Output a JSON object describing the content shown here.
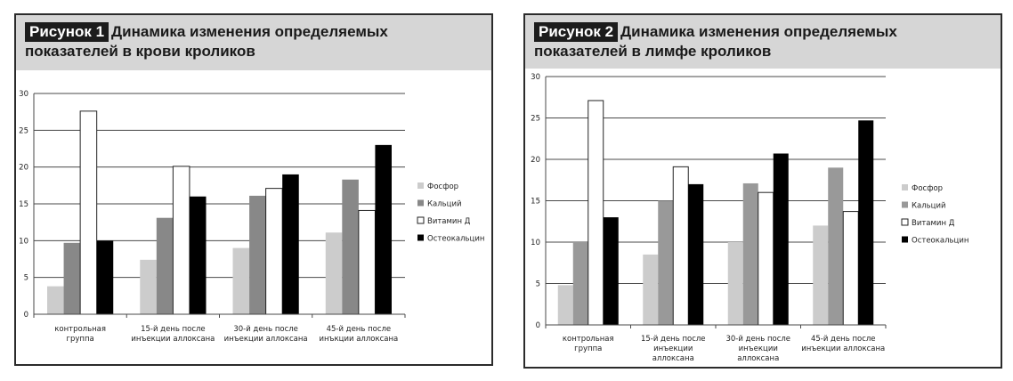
{
  "figures": [
    {
      "badge": "Рисунок 1",
      "title_line1": "Динамика изменения определяемых",
      "title_line2": "показателей в крови кроликов",
      "chart_data": {
        "type": "bar",
        "categories": [
          [
            "контрольная",
            "группа"
          ],
          [
            "15-й день после",
            "инъекции аллоксана"
          ],
          [
            "30-й день после",
            "инъекции аллоксана"
          ],
          [
            "45-й день после",
            "инъкции аллоксана"
          ]
        ],
        "ylim": [
          0,
          30
        ],
        "yticks": [
          0,
          5,
          10,
          15,
          20,
          25,
          30
        ],
        "grid": true,
        "legend_position": "right",
        "series": [
          {
            "name": "Фосфор",
            "color": "#cccccc",
            "values": [
              3.8,
              7.4,
              9.0,
              11.1
            ]
          },
          {
            "name": "Кальций",
            "color": "#888888",
            "values": [
              9.7,
              13.1,
              16.1,
              18.3
            ]
          },
          {
            "name": "Витамин Д",
            "color": "#ffffff",
            "values": [
              27.6,
              20.1,
              17.1,
              14.1
            ]
          },
          {
            "name": "Остеокальцин",
            "color": "#000000",
            "values": [
              10.0,
              16.0,
              19.0,
              23.0
            ]
          }
        ]
      }
    },
    {
      "badge": "Рисунок 2",
      "title_line1": "Динамика изменения определяемых",
      "title_line2": "показателей в лимфе кроликов",
      "chart_data": {
        "type": "bar",
        "categories": [
          [
            "контрольная",
            "группа"
          ],
          [
            "15-й день после",
            "инъекции",
            "аллоксана"
          ],
          [
            "30-й день после",
            "инъекции",
            "аллоксана"
          ],
          [
            "45-й день после",
            "инъекции аллоксана"
          ]
        ],
        "ylim": [
          0,
          30
        ],
        "yticks": [
          0,
          5,
          10,
          15,
          20,
          25,
          30
        ],
        "grid": true,
        "legend_position": "right",
        "series": [
          {
            "name": "Фосфор",
            "color": "#cccccc",
            "values": [
              4.8,
              8.5,
              10.0,
              12.0
            ]
          },
          {
            "name": "Кальций",
            "color": "#999999",
            "values": [
              10.0,
              15.0,
              17.1,
              19.0
            ]
          },
          {
            "name": "Витамин Д",
            "color": "#ffffff",
            "values": [
              27.1,
              19.1,
              16.0,
              13.7
            ]
          },
          {
            "name": "Остеокальцин",
            "color": "#000000",
            "values": [
              13.0,
              17.0,
              20.7,
              24.7
            ]
          }
        ]
      }
    }
  ]
}
